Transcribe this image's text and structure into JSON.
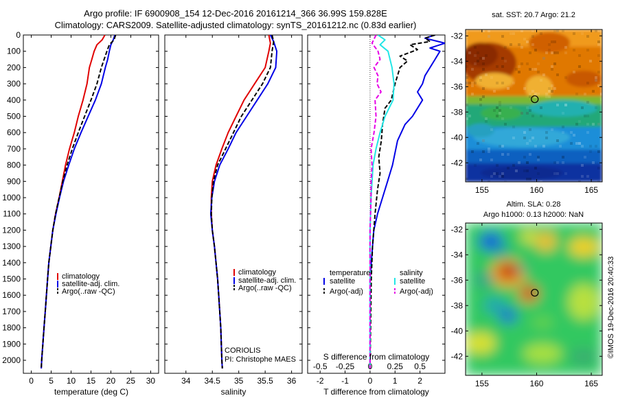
{
  "header": {
    "line1": "Argo profile: IF 6900908_154 12-Dec-2016 20161214_366 36.99S 159.828E",
    "line2": "Climatology: CARS2009. Satellite-adjusted climatology: synTS_20161212.nc (0.83d earlier)"
  },
  "colors": {
    "climatology": "#e00000",
    "satellite": "#0000e6",
    "argo": "#000000",
    "cyan": "#22e6e6",
    "magenta": "#e600e6"
  },
  "chart_data": [
    {
      "type": "line",
      "name": "temperature",
      "xlabel": "temperature (deg C)",
      "ylabel": "",
      "xlim": [
        -2,
        32
      ],
      "ylim": [
        2080,
        0
      ],
      "x_ticks": [
        "0",
        "5",
        "10",
        "15",
        "20",
        "25",
        "30"
      ],
      "y_ticks": [
        "0",
        "100",
        "200",
        "300",
        "400",
        "500",
        "600",
        "700",
        "800",
        "900",
        "1000",
        "1100",
        "1200",
        "1300",
        "1400",
        "1500",
        "1600",
        "1700",
        "1800",
        "1900",
        "2000"
      ],
      "legend": [
        "climatology",
        "satellite-adj. clim.",
        "Argo(..raw -QC)"
      ],
      "series": [
        {
          "name": "climatology",
          "style": "solid",
          "color": "#e00000",
          "points": [
            [
              18.5,
              0
            ],
            [
              17.8,
              30
            ],
            [
              16.5,
              60
            ],
            [
              15.8,
              100
            ],
            [
              15.2,
              150
            ],
            [
              14.6,
              200
            ],
            [
              14,
              300
            ],
            [
              13,
              400
            ],
            [
              11.8,
              500
            ],
            [
              10.8,
              600
            ],
            [
              9.6,
              700
            ],
            [
              8.6,
              800
            ],
            [
              7.8,
              900
            ],
            [
              7,
              1000
            ],
            [
              6.1,
              1100
            ],
            [
              5.4,
              1200
            ],
            [
              4.9,
              1300
            ],
            [
              4.4,
              1400
            ],
            [
              4.1,
              1500
            ],
            [
              3.8,
              1600
            ],
            [
              3.5,
              1700
            ],
            [
              3.2,
              1800
            ],
            [
              2.9,
              1900
            ],
            [
              2.6,
              2000
            ],
            [
              2.5,
              2050
            ]
          ]
        },
        {
          "name": "satellite-adj. clim.",
          "style": "solid",
          "color": "#0000e6",
          "points": [
            [
              21,
              0
            ],
            [
              20.6,
              30
            ],
            [
              20,
              60
            ],
            [
              19.6,
              100
            ],
            [
              19.2,
              150
            ],
            [
              18.6,
              200
            ],
            [
              17.6,
              300
            ],
            [
              16.1,
              400
            ],
            [
              14.3,
              500
            ],
            [
              12.5,
              600
            ],
            [
              10.8,
              700
            ],
            [
              9.4,
              800
            ],
            [
              8.1,
              900
            ],
            [
              7.1,
              1000
            ],
            [
              6.2,
              1100
            ],
            [
              5.4,
              1200
            ],
            [
              4.9,
              1300
            ],
            [
              4.4,
              1400
            ],
            [
              4.1,
              1500
            ],
            [
              3.8,
              1600
            ],
            [
              3.5,
              1700
            ],
            [
              3.2,
              1800
            ],
            [
              2.9,
              1900
            ],
            [
              2.6,
              2000
            ],
            [
              2.5,
              2050
            ]
          ]
        },
        {
          "name": "Argo(..raw -QC)",
          "style": "dashed",
          "color": "#000000",
          "points": [
            [
              21.2,
              0
            ],
            [
              20.8,
              30
            ],
            [
              19.6,
              60
            ],
            [
              19,
              100
            ],
            [
              18.3,
              150
            ],
            [
              17.6,
              200
            ],
            [
              16.5,
              300
            ],
            [
              15,
              400
            ],
            [
              13.4,
              500
            ],
            [
              11.8,
              600
            ],
            [
              10.3,
              700
            ],
            [
              9,
              800
            ],
            [
              7.9,
              900
            ],
            [
              7,
              1000
            ],
            [
              6.1,
              1100
            ],
            [
              5.4,
              1200
            ],
            [
              4.9,
              1300
            ],
            [
              4.4,
              1400
            ],
            [
              4.1,
              1500
            ],
            [
              3.8,
              1600
            ],
            [
              3.5,
              1700
            ],
            [
              3.2,
              1800
            ],
            [
              2.9,
              1900
            ],
            [
              2.6,
              2000
            ],
            [
              2.5,
              2050
            ]
          ]
        }
      ]
    },
    {
      "type": "line",
      "name": "salinity",
      "xlabel": "salinity",
      "xlim": [
        33.6,
        36.2
      ],
      "ylim": [
        2080,
        0
      ],
      "x_ticks": [
        "34",
        "34.5",
        "35",
        "35.5",
        "36"
      ],
      "legend": [
        "climatology",
        "satellite-adj. clim.",
        "Argo(..raw -QC)"
      ],
      "annotation": [
        "CORIOLIS",
        "PI: Christophe MAES"
      ],
      "series": [
        {
          "name": "climatology",
          "style": "solid",
          "color": "#e00000",
          "points": [
            [
              35.57,
              0
            ],
            [
              35.6,
              50
            ],
            [
              35.57,
              100
            ],
            [
              35.5,
              200
            ],
            [
              35.3,
              300
            ],
            [
              35.1,
              400
            ],
            [
              34.95,
              500
            ],
            [
              34.8,
              600
            ],
            [
              34.68,
              700
            ],
            [
              34.57,
              800
            ],
            [
              34.5,
              900
            ],
            [
              34.48,
              1000
            ],
            [
              34.48,
              1100
            ],
            [
              34.5,
              1200
            ],
            [
              34.54,
              1300
            ],
            [
              34.57,
              1400
            ],
            [
              34.6,
              1500
            ],
            [
              34.62,
              1600
            ],
            [
              34.64,
              1700
            ],
            [
              34.66,
              1800
            ],
            [
              34.67,
              1900
            ],
            [
              34.68,
              2000
            ],
            [
              34.69,
              2050
            ]
          ]
        },
        {
          "name": "satellite-adj. clim.",
          "style": "solid",
          "color": "#0000e6",
          "points": [
            [
              35.6,
              0
            ],
            [
              35.66,
              40
            ],
            [
              35.72,
              100
            ],
            [
              35.7,
              200
            ],
            [
              35.55,
              300
            ],
            [
              35.35,
              400
            ],
            [
              35.15,
              500
            ],
            [
              34.95,
              600
            ],
            [
              34.8,
              700
            ],
            [
              34.64,
              800
            ],
            [
              34.54,
              900
            ],
            [
              34.49,
              1000
            ],
            [
              34.47,
              1100
            ],
            [
              34.5,
              1200
            ],
            [
              34.54,
              1300
            ],
            [
              34.57,
              1400
            ],
            [
              34.6,
              1500
            ],
            [
              34.62,
              1600
            ],
            [
              34.64,
              1700
            ],
            [
              34.66,
              1800
            ],
            [
              34.67,
              1900
            ],
            [
              34.68,
              2000
            ],
            [
              34.69,
              2050
            ]
          ]
        },
        {
          "name": "Argo(..raw -QC)",
          "style": "dashed",
          "color": "#000000",
          "points": [
            [
              35.63,
              0
            ],
            [
              35.66,
              40
            ],
            [
              35.63,
              100
            ],
            [
              35.6,
              200
            ],
            [
              35.45,
              300
            ],
            [
              35.25,
              400
            ],
            [
              35.05,
              500
            ],
            [
              34.9,
              600
            ],
            [
              34.75,
              700
            ],
            [
              34.6,
              800
            ],
            [
              34.52,
              900
            ],
            [
              34.49,
              1000
            ],
            [
              34.48,
              1100
            ],
            [
              34.5,
              1200
            ],
            [
              34.54,
              1300
            ],
            [
              34.57,
              1400
            ],
            [
              34.6,
              1500
            ],
            [
              34.62,
              1600
            ],
            [
              34.64,
              1700
            ],
            [
              34.66,
              1800
            ],
            [
              34.67,
              1900
            ],
            [
              34.68,
              2000
            ],
            [
              34.69,
              2050
            ]
          ]
        }
      ]
    },
    {
      "type": "line",
      "name": "differences",
      "xlabel": "T difference from climatology",
      "x2label": "S difference from climatology",
      "xlim": [
        -2.5,
        3
      ],
      "x2lim": [
        -0.625,
        0.75
      ],
      "ylim": [
        2080,
        0
      ],
      "x_ticks": [
        "-2",
        "-1",
        "0",
        "1",
        "2"
      ],
      "x2_ticks": [
        "-0.5",
        "-0.25",
        "0",
        "0.25",
        "0.5"
      ],
      "legend_temperature": {
        "title": "temperature",
        "items": [
          "satellite",
          "Argo(-adj)"
        ]
      },
      "legend_salinity": {
        "title": "salinity",
        "items": [
          "satellite",
          "Argo(-adj)"
        ]
      },
      "series": [
        {
          "name": "satellite",
          "group": "temperature",
          "axis": "T",
          "style": "solid",
          "color": "#0000e6",
          "points": [
            [
              2.6,
              0
            ],
            [
              2.2,
              20
            ],
            [
              3,
              50
            ],
            [
              2.4,
              80
            ],
            [
              2.8,
              100
            ],
            [
              2.6,
              150
            ],
            [
              2.2,
              250
            ],
            [
              2.1,
              300
            ],
            [
              1.9,
              350
            ],
            [
              2.1,
              400
            ],
            [
              1.7,
              500
            ],
            [
              1.4,
              550
            ],
            [
              1.1,
              650
            ],
            [
              0.9,
              800
            ],
            [
              0.7,
              900
            ],
            [
              0.5,
              1000
            ],
            [
              0.3,
              1100
            ],
            [
              0.15,
              1200
            ],
            [
              0.1,
              1300
            ],
            [
              0,
              1500
            ],
            [
              0,
              2050
            ]
          ]
        },
        {
          "name": "Argo(-adj)",
          "group": "temperature",
          "axis": "T",
          "style": "dashed",
          "color": "#000000",
          "points": [
            [
              2.6,
              0
            ],
            [
              2.2,
              20
            ],
            [
              2.4,
              40
            ],
            [
              1.6,
              60
            ],
            [
              1.9,
              90
            ],
            [
              1.2,
              130
            ],
            [
              1.5,
              160
            ],
            [
              1.2,
              200
            ],
            [
              1,
              300
            ],
            [
              0.85,
              400
            ],
            [
              0.6,
              450
            ],
            [
              0.5,
              550
            ],
            [
              0.45,
              650
            ],
            [
              0.35,
              750
            ],
            [
              0.4,
              850
            ],
            [
              0.3,
              950
            ],
            [
              0.2,
              1100
            ],
            [
              0.1,
              1300
            ],
            [
              0.05,
              1500
            ],
            [
              0,
              2050
            ]
          ]
        },
        {
          "name": "satellite",
          "group": "salinity",
          "axis": "S",
          "style": "solid",
          "color": "#22e6e6",
          "points": [
            [
              0.08,
              0
            ],
            [
              0.15,
              30
            ],
            [
              0.1,
              60
            ],
            [
              0.18,
              100
            ],
            [
              0.2,
              150
            ],
            [
              0.22,
              200
            ],
            [
              0.24,
              300
            ],
            [
              0.23,
              400
            ],
            [
              0.15,
              500
            ],
            [
              0.1,
              600
            ],
            [
              0.06,
              700
            ],
            [
              0.03,
              800
            ],
            [
              0.02,
              900
            ],
            [
              0.01,
              1000
            ],
            [
              0,
              1200
            ],
            [
              0,
              2050
            ]
          ]
        },
        {
          "name": "Argo(-adj)",
          "group": "salinity",
          "axis": "S",
          "style": "dashed",
          "color": "#e600e6",
          "points": [
            [
              0.06,
              0
            ],
            [
              0.02,
              50
            ],
            [
              0.08,
              100
            ],
            [
              0.1,
              150
            ],
            [
              0.04,
              200
            ],
            [
              0.08,
              250
            ],
            [
              0.07,
              300
            ],
            [
              0.11,
              350
            ],
            [
              0.05,
              400
            ],
            [
              0.06,
              500
            ],
            [
              0.04,
              600
            ],
            [
              0.01,
              700
            ],
            [
              0.02,
              800
            ],
            [
              0.01,
              900
            ],
            [
              0.01,
              1000
            ],
            [
              0,
              1200
            ],
            [
              0,
              2050
            ]
          ]
        }
      ]
    },
    {
      "type": "heatmap",
      "name": "sst-map",
      "title": "sat. SST: 20.7  Argo: 21.2",
      "xlim": [
        153.5,
        166
      ],
      "ylim": [
        -43.5,
        -31.5
      ],
      "x_ticks": [
        "155",
        "160",
        "165"
      ],
      "y_ticks": [
        "-32",
        "-34",
        "-36",
        "-38",
        "-40",
        "-42"
      ],
      "marker": {
        "lon": 159.83,
        "lat": -36.99
      }
    },
    {
      "type": "heatmap",
      "name": "sla-map",
      "title": "Altim. SLA: 0.28",
      "subtitle": "Argo h1000: 0.13  h2000: NaN",
      "xlim": [
        153.5,
        166
      ],
      "ylim": [
        -43.5,
        -31.5
      ],
      "x_ticks": [
        "155",
        "160",
        "165"
      ],
      "y_ticks": [
        "-32",
        "-34",
        "-36",
        "-38",
        "-40",
        "-42"
      ],
      "marker": {
        "lon": 159.83,
        "lat": -36.99
      }
    }
  ],
  "footer": {
    "credit": "©IMOS 19-Dec-2016 20:40:33"
  }
}
